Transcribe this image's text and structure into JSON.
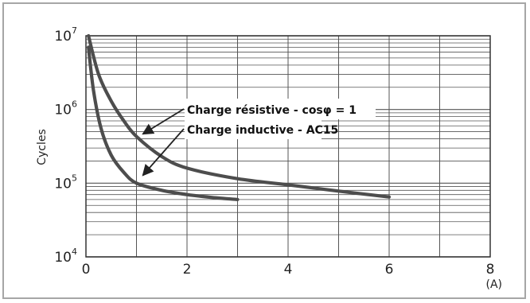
{
  "chart_data": {
    "type": "line",
    "title": "",
    "xlabel": "",
    "x_unit": "(A)",
    "ylabel": "Cycles",
    "xlim": [
      0,
      8
    ],
    "ylim": [
      10000,
      10000000
    ],
    "yscale": "log",
    "grid": true,
    "x_ticks": [
      "0",
      "2",
      "4",
      "6",
      "8"
    ],
    "y_ticks": [
      {
        "base": "10",
        "exp": "4",
        "value": 10000
      },
      {
        "base": "10",
        "exp": "5",
        "value": 100000
      },
      {
        "base": "10",
        "exp": "6",
        "value": 1000000
      },
      {
        "base": "10",
        "exp": "7",
        "value": 10000000
      }
    ],
    "series": [
      {
        "name": "Charge résistive - cosφ = 1",
        "color": "#4d4d4d",
        "x": [
          0.05,
          0.25,
          0.5,
          0.75,
          1,
          1.5,
          2,
          3,
          4,
          5,
          6
        ],
        "y": [
          10000000,
          3000000,
          1300000,
          700000,
          430000,
          230000,
          160000,
          115000,
          95000,
          78000,
          65000
        ]
      },
      {
        "name": "Charge inductive - AC15",
        "color": "#4d4d4d",
        "x": [
          0.05,
          0.15,
          0.3,
          0.5,
          0.75,
          1,
          1.5,
          2,
          2.5,
          3
        ],
        "y": [
          7000000,
          1800000,
          550000,
          240000,
          140000,
          100000,
          80000,
          70000,
          64000,
          60000
        ]
      }
    ],
    "annotations": [
      {
        "text": "Charge résistive - cosφ = 1",
        "points_to_x": 1,
        "points_to_y": 400000
      },
      {
        "text": "Charge inductive - AC15",
        "points_to_x": 1,
        "points_to_y": 110000
      }
    ]
  }
}
